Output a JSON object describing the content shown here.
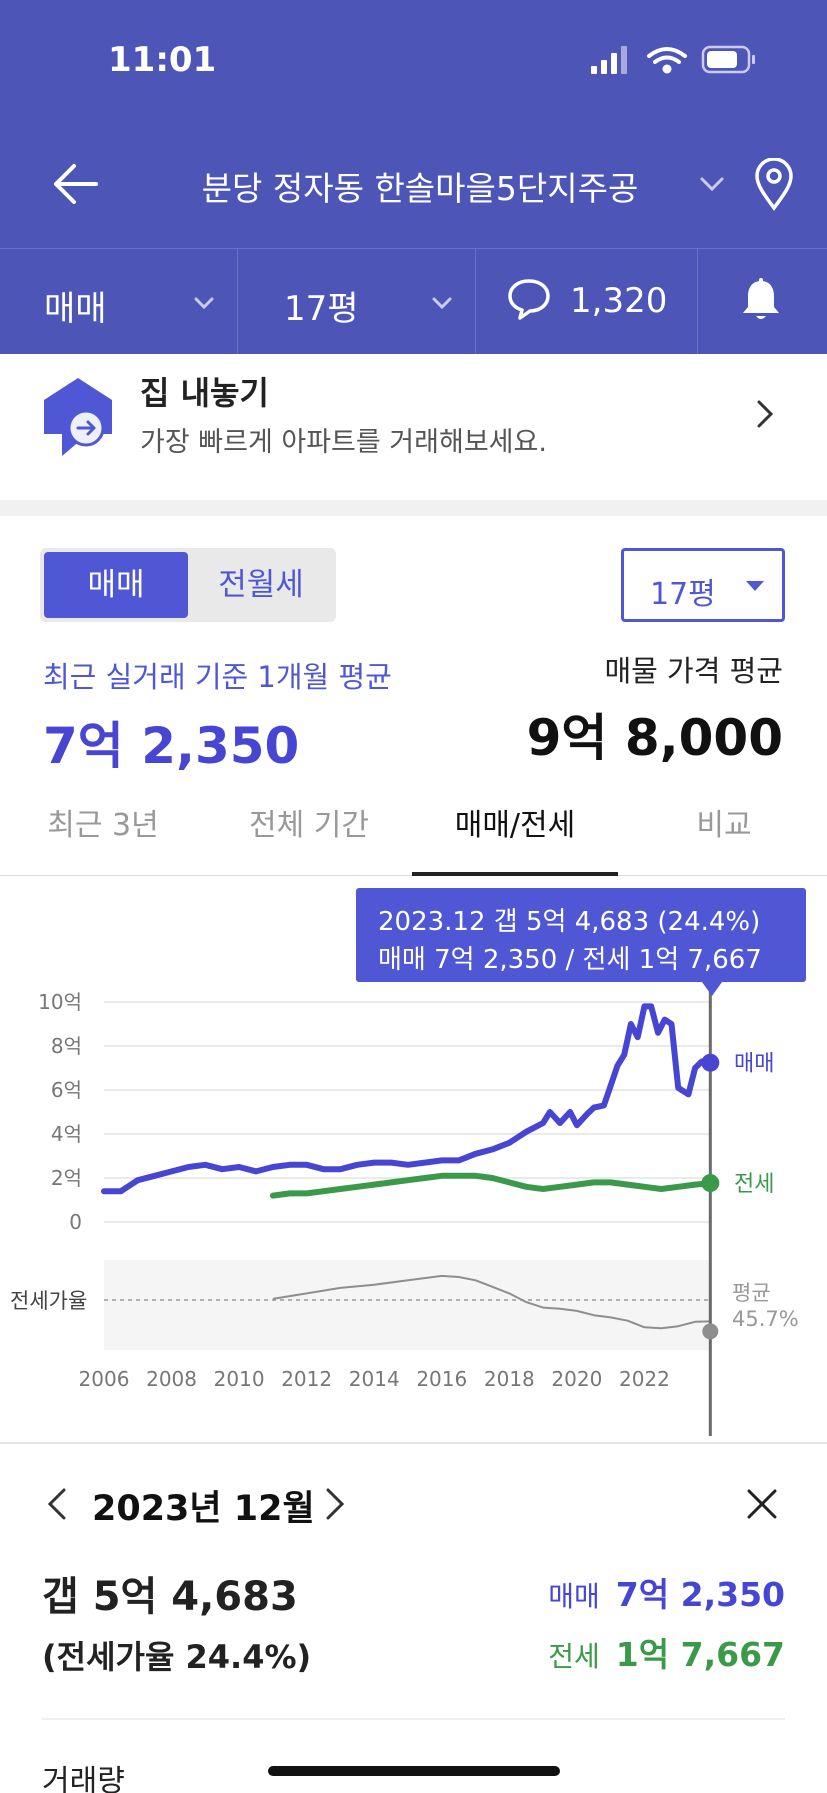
{
  "status_bar": {
    "time": "11:01"
  },
  "header": {
    "title": "분당 정자동 한솔마을5단지주공"
  },
  "filters": {
    "deal_type": "매매",
    "size": "17평",
    "comment_count": "1,320"
  },
  "sell_banner": {
    "title": "집 내놓기",
    "subtitle": "가장 빠르게 아파트를 거래해보세요."
  },
  "toggle": {
    "active": "매매",
    "inactive": "전월세"
  },
  "size_select": {
    "value": "17평"
  },
  "price": {
    "recent_label": "최근 실거래 기준 1개월 평균",
    "recent_value": "7억 2,350",
    "listing_label": "매물 가격 평균",
    "listing_value": "9억 8,000"
  },
  "tabs": [
    {
      "label": "최근 3년"
    },
    {
      "label": "전체 기간"
    },
    {
      "label": "매매/전세"
    },
    {
      "label": "비교"
    }
  ],
  "chart_data": {
    "type": "line",
    "tooltip": {
      "line1": "2023.12  갭 5억 4,683 (24.4%)",
      "line2": "매매 7억 2,350 / 전세 1억 7,667"
    },
    "y_ticks": [
      "10억",
      "8억",
      "6억",
      "4억",
      "2억",
      "0"
    ],
    "ylim": [
      0,
      10
    ],
    "x_ticks": [
      "2006",
      "2008",
      "2010",
      "2012",
      "2014",
      "2016",
      "2018",
      "2020",
      "2022"
    ],
    "xlim": [
      2006,
      2024
    ],
    "ratio_label": "전세가율",
    "ratio_avg_label": "평균",
    "ratio_avg_value": "45.7%",
    "ratio_avg": 45.7,
    "cursor_x": 2023.95,
    "series": [
      {
        "name": "매매",
        "color": "#4646d2",
        "points": [
          [
            2006.0,
            1.4
          ],
          [
            2006.5,
            1.4
          ],
          [
            2007.0,
            1.9
          ],
          [
            2007.5,
            2.1
          ],
          [
            2008.0,
            2.3
          ],
          [
            2008.5,
            2.5
          ],
          [
            2009.0,
            2.6
          ],
          [
            2009.5,
            2.4
          ],
          [
            2010.0,
            2.5
          ],
          [
            2010.5,
            2.3
          ],
          [
            2011.0,
            2.5
          ],
          [
            2011.5,
            2.6
          ],
          [
            2012.0,
            2.6
          ],
          [
            2012.5,
            2.4
          ],
          [
            2013.0,
            2.4
          ],
          [
            2013.5,
            2.6
          ],
          [
            2014.0,
            2.7
          ],
          [
            2014.5,
            2.7
          ],
          [
            2015.0,
            2.6
          ],
          [
            2015.5,
            2.7
          ],
          [
            2016.0,
            2.8
          ],
          [
            2016.5,
            2.8
          ],
          [
            2017.0,
            3.1
          ],
          [
            2017.5,
            3.3
          ],
          [
            2018.0,
            3.6
          ],
          [
            2018.5,
            4.1
          ],
          [
            2019.0,
            4.5
          ],
          [
            2019.2,
            5.0
          ],
          [
            2019.5,
            4.5
          ],
          [
            2019.8,
            5.0
          ],
          [
            2020.0,
            4.4
          ],
          [
            2020.3,
            4.9
          ],
          [
            2020.5,
            5.2
          ],
          [
            2020.8,
            5.3
          ],
          [
            2021.0,
            6.2
          ],
          [
            2021.2,
            7.1
          ],
          [
            2021.4,
            7.6
          ],
          [
            2021.6,
            9.0
          ],
          [
            2021.8,
            8.4
          ],
          [
            2022.0,
            9.8
          ],
          [
            2022.2,
            9.8
          ],
          [
            2022.4,
            8.6
          ],
          [
            2022.6,
            9.2
          ],
          [
            2022.8,
            9.0
          ],
          [
            2023.0,
            6.1
          ],
          [
            2023.3,
            5.8
          ],
          [
            2023.5,
            7.0
          ],
          [
            2023.7,
            7.3
          ],
          [
            2023.95,
            7.24
          ]
        ]
      },
      {
        "name": "전세",
        "color": "#3b9a4a",
        "points": [
          [
            2011.0,
            1.2
          ],
          [
            2011.5,
            1.3
          ],
          [
            2012.0,
            1.3
          ],
          [
            2012.5,
            1.4
          ],
          [
            2013.0,
            1.5
          ],
          [
            2013.5,
            1.6
          ],
          [
            2014.0,
            1.7
          ],
          [
            2014.5,
            1.8
          ],
          [
            2015.0,
            1.9
          ],
          [
            2015.5,
            2.0
          ],
          [
            2016.0,
            2.1
          ],
          [
            2016.5,
            2.1
          ],
          [
            2017.0,
            2.1
          ],
          [
            2017.5,
            2.0
          ],
          [
            2018.0,
            1.8
          ],
          [
            2018.5,
            1.6
          ],
          [
            2019.0,
            1.5
          ],
          [
            2019.5,
            1.6
          ],
          [
            2020.0,
            1.7
          ],
          [
            2020.5,
            1.8
          ],
          [
            2021.0,
            1.8
          ],
          [
            2021.5,
            1.7
          ],
          [
            2022.0,
            1.6
          ],
          [
            2022.5,
            1.5
          ],
          [
            2023.0,
            1.6
          ],
          [
            2023.5,
            1.7
          ],
          [
            2023.95,
            1.77
          ]
        ]
      },
      {
        "name": "전세가율",
        "color": "#8e8e8e",
        "points": [
          [
            2011.0,
            45
          ],
          [
            2012.0,
            50
          ],
          [
            2013.0,
            55
          ],
          [
            2014.0,
            58
          ],
          [
            2015.0,
            62
          ],
          [
            2016.0,
            66
          ],
          [
            2016.5,
            65
          ],
          [
            2017.0,
            62
          ],
          [
            2017.5,
            56
          ],
          [
            2018.0,
            50
          ],
          [
            2018.5,
            42
          ],
          [
            2019.0,
            37
          ],
          [
            2019.5,
            36
          ],
          [
            2020.0,
            34
          ],
          [
            2020.5,
            30
          ],
          [
            2021.0,
            28
          ],
          [
            2021.5,
            25
          ],
          [
            2022.0,
            19
          ],
          [
            2022.5,
            18
          ],
          [
            2023.0,
            20
          ],
          [
            2023.5,
            24
          ],
          [
            2023.95,
            24.4
          ]
        ]
      }
    ]
  },
  "detail": {
    "month": "2023년 12월",
    "gap": "갭 5억 4,683",
    "ratio": "(전세가율 24.4%)",
    "sale_label": "매매",
    "sale_value": "7억 2,350",
    "jeonse_label": "전세",
    "jeonse_value": "1억 7,667",
    "volume_label": "거래량"
  },
  "colors": {
    "primary": "#4d55b6",
    "accent": "#4646d2",
    "jeonse": "#3b9a4a"
  }
}
